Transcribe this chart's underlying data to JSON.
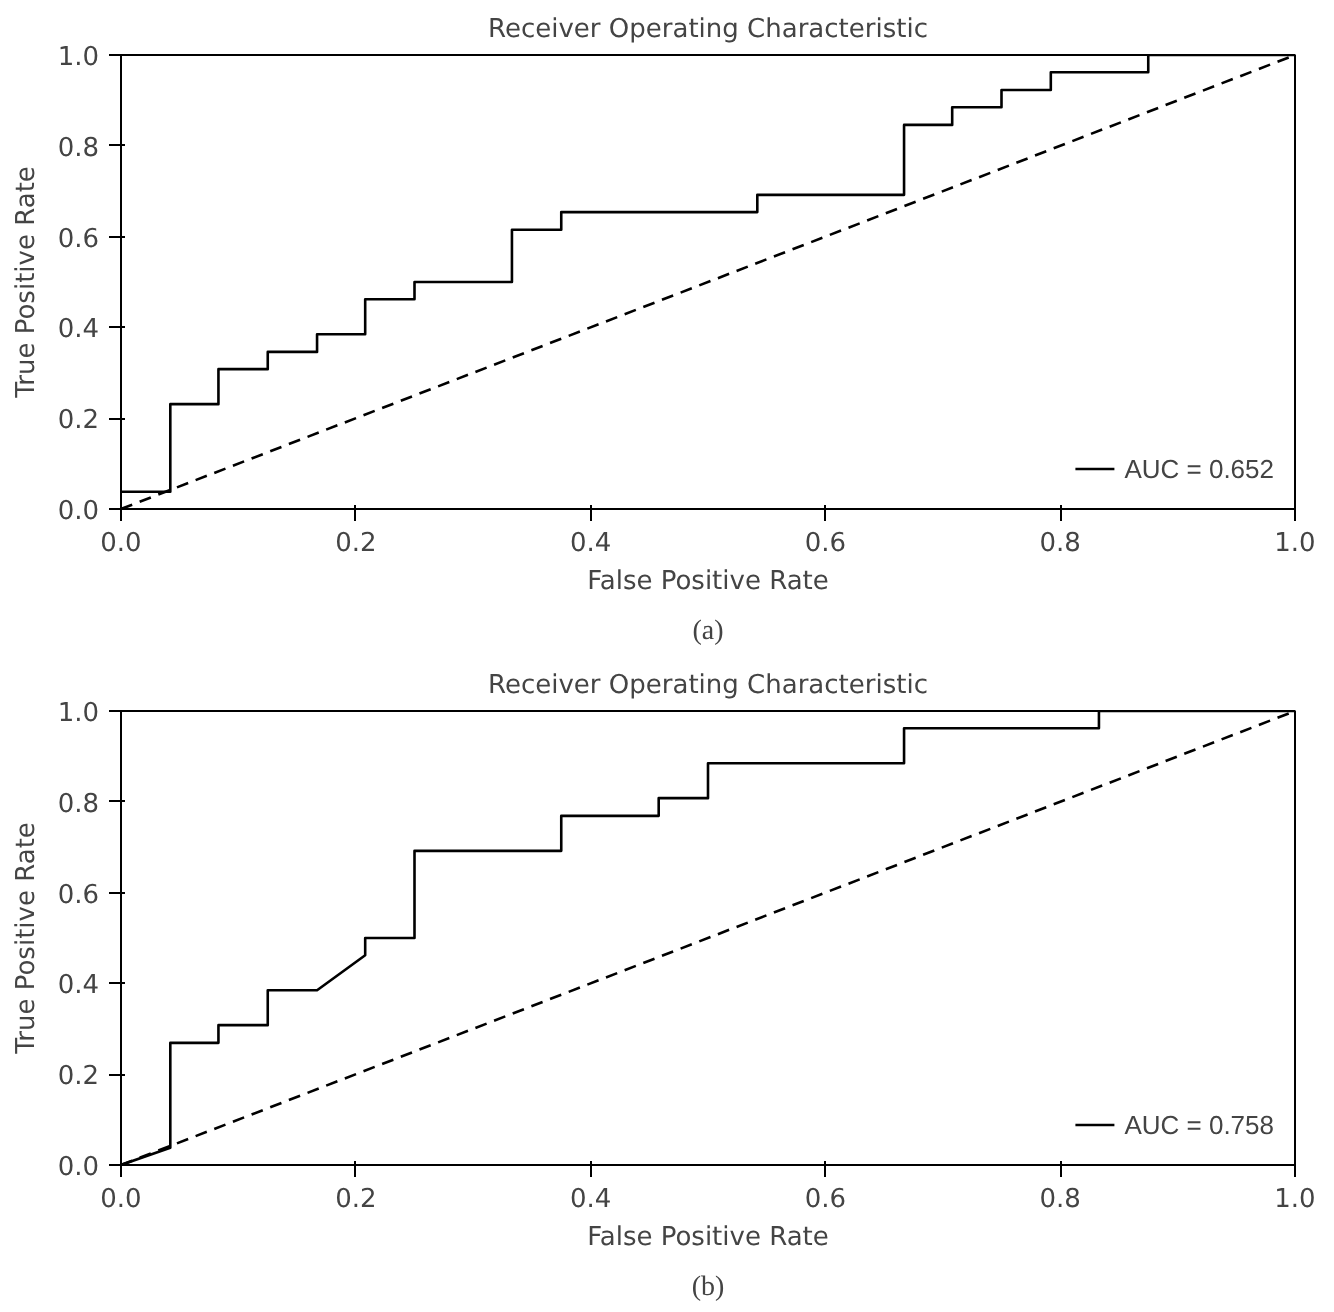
{
  "chart_data": [
    {
      "type": "line",
      "title": "Receiver Operating Characteristic",
      "xlabel": "False Positive Rate",
      "ylabel": "True Positive Rate",
      "annotations": [
        "(a)"
      ],
      "xlim": [
        0,
        1
      ],
      "ylim": [
        0,
        1
      ],
      "xticks": [
        {
          "value": 0,
          "label": "0.0"
        },
        {
          "value": 0.2,
          "label": "0.2"
        },
        {
          "value": 0.4,
          "label": "0.4"
        },
        {
          "value": 0.6,
          "label": "0.6"
        },
        {
          "value": 0.8,
          "label": "0.8"
        },
        {
          "value": 1,
          "label": "1.0"
        }
      ],
      "yticks": [
        {
          "value": 0,
          "label": "0.0"
        },
        {
          "value": 0.2,
          "label": "0.2"
        },
        {
          "value": 0.4,
          "label": "0.4"
        },
        {
          "value": 0.6,
          "label": "0.6"
        },
        {
          "value": 0.8,
          "label": "0.8"
        },
        {
          "value": 1,
          "label": "1.0"
        }
      ],
      "grid": false,
      "legend": "bottom right",
      "series": [
        {
          "name": "AUC = 0.652",
          "color": "#000000",
          "x": [
            0,
            0.042,
            0.042,
            0.083,
            0.083,
            0.125,
            0.125,
            0.167,
            0.167,
            0.208,
            0.208,
            0.25,
            0.25,
            0.333,
            0.333,
            0.375,
            0.375,
            0.542,
            0.542,
            0.667,
            0.667,
            0.708,
            0.708,
            0.75,
            0.75,
            0.792,
            0.792,
            0.875,
            0.875,
            1
          ],
          "values": [
            0.038,
            0.038,
            0.231,
            0.231,
            0.308,
            0.308,
            0.346,
            0.346,
            0.385,
            0.385,
            0.462,
            0.462,
            0.5,
            0.5,
            0.615,
            0.615,
            0.654,
            0.654,
            0.692,
            0.692,
            0.846,
            0.846,
            0.885,
            0.885,
            0.923,
            0.923,
            0.962,
            0.962,
            1,
            1
          ]
        },
        {
          "color": "#000000",
          "line_style": "dashed",
          "x": [
            0,
            1
          ],
          "values": [
            0,
            1
          ]
        }
      ]
    },
    {
      "type": "line",
      "title": "Receiver Operating Characteristic",
      "xlabel": "False Positive Rate",
      "ylabel": "True Positive Rate",
      "annotations": [
        "(b)"
      ],
      "xlim": [
        0,
        1
      ],
      "ylim": [
        0,
        1
      ],
      "xticks": [
        {
          "value": 0,
          "label": "0.0"
        },
        {
          "value": 0.2,
          "label": "0.2"
        },
        {
          "value": 0.4,
          "label": "0.4"
        },
        {
          "value": 0.6,
          "label": "0.6"
        },
        {
          "value": 0.8,
          "label": "0.8"
        },
        {
          "value": 1,
          "label": "1.0"
        }
      ],
      "yticks": [
        {
          "value": 0,
          "label": "0.0"
        },
        {
          "value": 0.2,
          "label": "0.2"
        },
        {
          "value": 0.4,
          "label": "0.4"
        },
        {
          "value": 0.6,
          "label": "0.6"
        },
        {
          "value": 0.8,
          "label": "0.8"
        },
        {
          "value": 1,
          "label": "1.0"
        }
      ],
      "grid": false,
      "legend": "bottom right",
      "series": [
        {
          "name": "AUC = 0.758",
          "color": "#000000",
          "x": [
            0,
            0.042,
            0.042,
            0.083,
            0.083,
            0.125,
            0.125,
            0.167,
            0.208,
            0.208,
            0.25,
            0.25,
            0.375,
            0.375,
            0.458,
            0.458,
            0.5,
            0.5,
            0.667,
            0.667,
            0.833,
            0.833,
            1
          ],
          "values": [
            0,
            0.038,
            0.269,
            0.269,
            0.308,
            0.308,
            0.385,
            0.385,
            0.462,
            0.5,
            0.5,
            0.692,
            0.692,
            0.769,
            0.769,
            0.808,
            0.808,
            0.885,
            0.885,
            0.962,
            0.962,
            1,
            1
          ]
        },
        {
          "color": "#000000",
          "line_style": "dashed",
          "x": [
            0,
            1
          ],
          "values": [
            0,
            1
          ]
        }
      ]
    }
  ]
}
